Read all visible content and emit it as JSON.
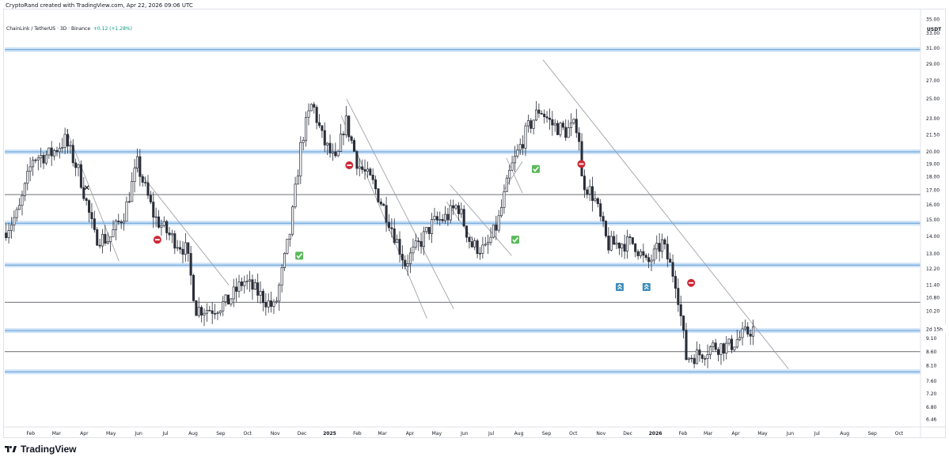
{
  "header": {
    "credit": "CryptoRand created with TradingView.com, Apr 22, 2026 09:06 UTC",
    "symbol": "ChainLink / TetherUS · 3D · Binance",
    "change": "+0.12 (+1.28%)"
  },
  "price_axis": {
    "currency": "USDT",
    "current_price_label": "9.46",
    "countdown_label": "2d 15h"
  },
  "footer": {
    "brand": "TradingView",
    "logo_icon": "tradingview-logo-icon"
  },
  "chart_data": {
    "type": "candlestick",
    "symbol": "LINKUSDT",
    "interval": "3D",
    "exchange": "Binance",
    "yscale": "log",
    "ylim": [
      6.3,
      36.0
    ],
    "y_ticks": [
      "35.00",
      "33.00",
      "31.00",
      "29.00",
      "27.00",
      "25.00",
      "23.00",
      "21.50",
      "20.00",
      "19.00",
      "18.00",
      "17.00",
      "16.00",
      "15.00",
      "14.00",
      "13.00",
      "12.20",
      "11.40",
      "10.80",
      "10.20",
      "9.10",
      "8.60",
      "8.10",
      "7.60",
      "7.20",
      "6.80",
      "6.46"
    ],
    "x_ticks": [
      {
        "label": "Feb",
        "x": "2024-02-01"
      },
      {
        "label": "Mar",
        "x": "2024-03-01"
      },
      {
        "label": "Apr",
        "x": "2024-04-01"
      },
      {
        "label": "May",
        "x": "2024-05-01"
      },
      {
        "label": "Jun",
        "x": "2024-06-01"
      },
      {
        "label": "Jul",
        "x": "2024-07-01"
      },
      {
        "label": "Aug",
        "x": "2024-08-01"
      },
      {
        "label": "Sep",
        "x": "2024-09-01"
      },
      {
        "label": "Oct",
        "x": "2024-10-01"
      },
      {
        "label": "Nov",
        "x": "2024-11-01"
      },
      {
        "label": "Dec",
        "x": "2024-12-01"
      },
      {
        "label": "2025",
        "x": "2025-01-01",
        "bold": true
      },
      {
        "label": "Feb",
        "x": "2025-02-01"
      },
      {
        "label": "Mar",
        "x": "2025-03-01"
      },
      {
        "label": "Apr",
        "x": "2025-04-01"
      },
      {
        "label": "May",
        "x": "2025-05-01"
      },
      {
        "label": "Jun",
        "x": "2025-06-01"
      },
      {
        "label": "Jul",
        "x": "2025-07-01"
      },
      {
        "label": "Aug",
        "x": "2025-08-01"
      },
      {
        "label": "Sep",
        "x": "2025-09-01"
      },
      {
        "label": "Oct",
        "x": "2025-10-01"
      },
      {
        "label": "Nov",
        "x": "2025-11-01"
      },
      {
        "label": "Dec",
        "x": "2025-12-01"
      },
      {
        "label": "2026",
        "x": "2026-01-01",
        "bold": true
      },
      {
        "label": "Feb",
        "x": "2026-02-01"
      },
      {
        "label": "Mar",
        "x": "2026-03-01"
      },
      {
        "label": "Apr",
        "x": "2026-04-01"
      },
      {
        "label": "May",
        "x": "2026-05-01"
      },
      {
        "label": "Jun",
        "x": "2026-06-01"
      },
      {
        "label": "Jul",
        "x": "2026-07-01"
      },
      {
        "label": "Aug",
        "x": "2026-08-01"
      },
      {
        "label": "Sep",
        "x": "2026-09-01"
      },
      {
        "label": "Oct",
        "x": "2026-10-01"
      }
    ],
    "xlim": [
      "2024-01-03",
      "2026-10-25"
    ],
    "anchors": [
      [
        "2024-01-03",
        14.2
      ],
      [
        "2024-01-20",
        15.5
      ],
      [
        "2024-02-05",
        19.5
      ],
      [
        "2024-02-25",
        19.8
      ],
      [
        "2024-03-12",
        21.0
      ],
      [
        "2024-03-28",
        18.3
      ],
      [
        "2024-04-14",
        14.0
      ],
      [
        "2024-04-30",
        13.8
      ],
      [
        "2024-05-18",
        15.5
      ],
      [
        "2024-06-01",
        19.0
      ],
      [
        "2024-06-20",
        15.2
      ],
      [
        "2024-07-08",
        14.0
      ],
      [
        "2024-07-26",
        13.2
      ],
      [
        "2024-08-06",
        10.3
      ],
      [
        "2024-08-24",
        10.3
      ],
      [
        "2024-09-10",
        10.6
      ],
      [
        "2024-09-28",
        11.6
      ],
      [
        "2024-10-15",
        11.0
      ],
      [
        "2024-11-02",
        10.3
      ],
      [
        "2024-11-20",
        14.5
      ],
      [
        "2024-12-02",
        21.0
      ],
      [
        "2024-12-14",
        24.6
      ],
      [
        "2024-12-26",
        21.0
      ],
      [
        "2025-01-10",
        19.0
      ],
      [
        "2025-01-20",
        23.0
      ],
      [
        "2025-02-03",
        19.0
      ],
      [
        "2025-02-20",
        17.5
      ],
      [
        "2025-03-10",
        15.0
      ],
      [
        "2025-03-28",
        12.5
      ],
      [
        "2025-04-12",
        13.5
      ],
      [
        "2025-04-28",
        14.8
      ],
      [
        "2025-05-14",
        15.2
      ],
      [
        "2025-05-26",
        16.0
      ],
      [
        "2025-06-10",
        13.5
      ],
      [
        "2025-06-26",
        13.2
      ],
      [
        "2025-07-10",
        14.8
      ],
      [
        "2025-07-24",
        18.5
      ],
      [
        "2025-08-12",
        22.0
      ],
      [
        "2025-08-26",
        24.0
      ],
      [
        "2025-09-08",
        22.5
      ],
      [
        "2025-09-24",
        21.8
      ],
      [
        "2025-10-08",
        22.5
      ],
      [
        "2025-10-12",
        17.8
      ],
      [
        "2025-10-26",
        16.5
      ],
      [
        "2025-11-10",
        13.5
      ],
      [
        "2025-11-24",
        13.6
      ],
      [
        "2025-12-10",
        13.6
      ],
      [
        "2025-12-24",
        12.4
      ],
      [
        "2026-01-10",
        13.6
      ],
      [
        "2026-01-26",
        11.5
      ],
      [
        "2026-02-06",
        8.4
      ],
      [
        "2026-02-20",
        8.5
      ],
      [
        "2026-03-08",
        8.8
      ],
      [
        "2026-03-26",
        8.8
      ],
      [
        "2026-04-10",
        9.2
      ],
      [
        "2026-04-21",
        9.46
      ]
    ],
    "horizontal_levels": [
      {
        "price": 30.8,
        "style": "zone"
      },
      {
        "price": 20.0,
        "style": "zone"
      },
      {
        "price": 16.7,
        "style": "line"
      },
      {
        "price": 14.8,
        "style": "zone"
      },
      {
        "price": 12.4,
        "style": "zone"
      },
      {
        "price": 10.6,
        "style": "line"
      },
      {
        "price": 9.4,
        "style": "zone"
      },
      {
        "price": 8.6,
        "style": "line"
      },
      {
        "price": 7.9,
        "style": "zone"
      }
    ],
    "trend_lines": [
      [
        [
          "2024-03-12",
          22.0
        ],
        [
          "2024-05-10",
          12.6
        ]
      ],
      [
        [
          "2024-05-28",
          18.8
        ],
        [
          "2024-09-10",
          11.4
        ]
      ],
      [
        [
          "2025-01-20",
          25.0
        ],
        [
          "2025-05-20",
          10.3
        ]
      ],
      [
        [
          "2025-01-14",
          23.3
        ],
        [
          "2025-04-20",
          9.9
        ]
      ],
      [
        [
          "2025-05-16",
          17.4
        ],
        [
          "2025-07-24",
          12.9
        ]
      ],
      [
        [
          "2025-06-16",
          13.4
        ],
        [
          "2025-05-12",
          16.2
        ]
      ],
      [
        [
          "2025-08-05",
          19.2
        ],
        [
          "2025-07-16",
          17.1
        ]
      ],
      [
        [
          "2025-08-05",
          16.8
        ],
        [
          "2025-07-18",
          19.5
        ]
      ],
      [
        [
          "2025-08-28",
          29.5
        ],
        [
          "2026-05-30",
          8.0
        ]
      ]
    ],
    "markers": [
      {
        "date": "2024-04-04",
        "price": 17.2,
        "icon": "x-icon"
      },
      {
        "date": "2024-06-22",
        "price": 13.8,
        "icon": "no-entry-icon"
      },
      {
        "date": "2024-11-28",
        "price": 12.9,
        "icon": "check-icon"
      },
      {
        "date": "2025-01-23",
        "price": 18.9,
        "icon": "no-entry-icon"
      },
      {
        "date": "2025-07-28",
        "price": 13.8,
        "icon": "check-icon"
      },
      {
        "date": "2025-08-20",
        "price": 18.6,
        "icon": "check-icon"
      },
      {
        "date": "2025-10-10",
        "price": 19.0,
        "icon": "no-entry-icon"
      },
      {
        "date": "2025-11-22",
        "price": 11.3,
        "icon": "trend-up-icon"
      },
      {
        "date": "2025-12-22",
        "price": 11.3,
        "icon": "trend-up-icon"
      },
      {
        "date": "2026-02-10",
        "price": 11.5,
        "icon": "no-entry-icon"
      }
    ],
    "colors": {
      "candle": "#2a2e39",
      "zone_fill": "#cfe3f7",
      "zone_line": "#5b9bd5",
      "level_line": "#131722",
      "trend_line": "#9598a1",
      "check": "#5cb85c",
      "no_entry": "#cc2936",
      "trend_up": "#3d8eb9"
    }
  }
}
